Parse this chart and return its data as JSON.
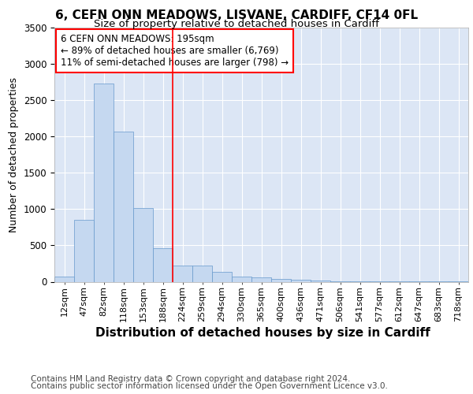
{
  "title1": "6, CEFN ONN MEADOWS, LISVANE, CARDIFF, CF14 0FL",
  "title2": "Size of property relative to detached houses in Cardiff",
  "xlabel": "Distribution of detached houses by size in Cardiff",
  "ylabel": "Number of detached properties",
  "footer1": "Contains HM Land Registry data © Crown copyright and database right 2024.",
  "footer2": "Contains public sector information licensed under the Open Government Licence v3.0.",
  "annotation_line1": "6 CEFN ONN MEADOWS: 195sqm",
  "annotation_line2": "← 89% of detached houses are smaller (6,769)",
  "annotation_line3": "11% of semi-detached houses are larger (798) →",
  "bar_labels": [
    "12sqm",
    "47sqm",
    "82sqm",
    "118sqm",
    "153sqm",
    "188sqm",
    "224sqm",
    "259sqm",
    "294sqm",
    "330sqm",
    "365sqm",
    "400sqm",
    "436sqm",
    "471sqm",
    "506sqm",
    "541sqm",
    "577sqm",
    "612sqm",
    "647sqm",
    "683sqm",
    "718sqm"
  ],
  "bar_values": [
    70,
    850,
    2730,
    2070,
    1010,
    460,
    225,
    225,
    140,
    75,
    60,
    35,
    30,
    15,
    10,
    5,
    3,
    2,
    1,
    1,
    1
  ],
  "bar_color": "#c5d8f0",
  "bar_edge_color": "#6699cc",
  "red_line_x": 5.5,
  "ylim": [
    0,
    3500
  ],
  "bg_color": "#dce6f5",
  "grid_color": "#ffffff",
  "title1_fontsize": 11,
  "title2_fontsize": 9.5,
  "ylabel_fontsize": 9,
  "xlabel_fontsize": 11,
  "tick_fontsize": 8,
  "annotation_fontsize": 8.5,
  "footer_fontsize": 7.5
}
